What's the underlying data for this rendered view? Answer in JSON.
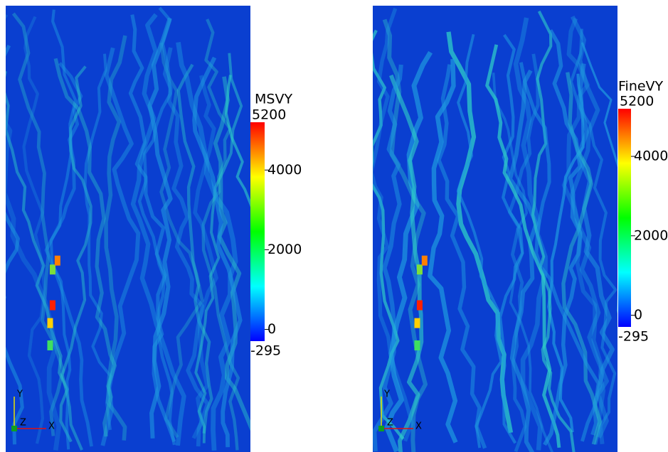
{
  "panels": [
    {
      "colorbar": {
        "title": "MSVY",
        "range": [
          -295,
          5200
        ],
        "ticks": [
          0,
          2000,
          4000
        ]
      },
      "axes": {
        "x": "X",
        "y": "Y",
        "z": "Z"
      }
    },
    {
      "colorbar": {
        "title": "FineVY",
        "range": [
          -295,
          5200
        ],
        "ticks": [
          0,
          2000,
          4000
        ]
      },
      "axes": {
        "x": "X",
        "y": "Y",
        "z": "Z"
      }
    }
  ]
}
